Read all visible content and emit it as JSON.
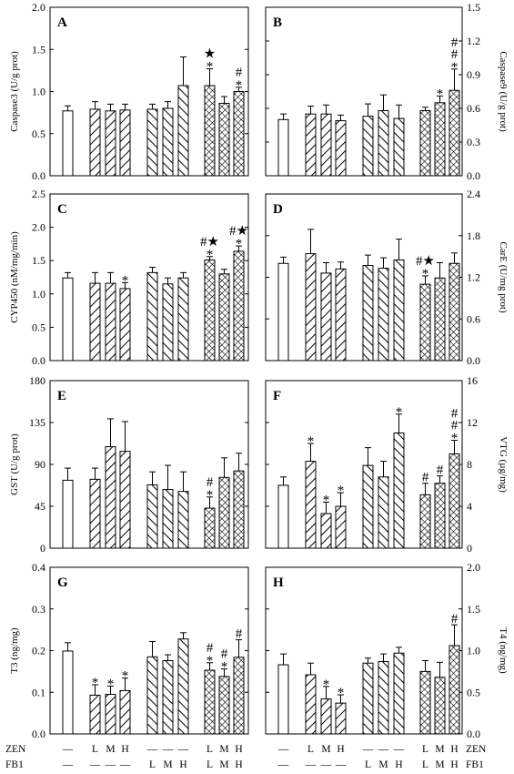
{
  "figure": {
    "x_groups": {
      "ZEN": {
        "label": "ZEN",
        "entries": [
          "—",
          "L",
          "M",
          "H",
          "—",
          "—",
          "—",
          "L",
          "M",
          "H"
        ]
      },
      "FB1": {
        "label": "FB1",
        "entries": [
          "—",
          "—",
          "—",
          "—",
          "L",
          "M",
          "H",
          "L",
          "M",
          "H"
        ]
      }
    }
  },
  "chart_data": [
    {
      "panel": "A",
      "type": "bar",
      "ylabel": "Caspase3 (U/g prot)",
      "axis_side": "left",
      "ylim": [
        0,
        2.0
      ],
      "yticks": [
        "0.0",
        "0.5",
        "1.0",
        "1.5",
        "2.0"
      ],
      "ytick_values": [
        0,
        0.5,
        1.0,
        1.5,
        2.0
      ],
      "values": [
        0.77,
        0.79,
        0.77,
        0.78,
        0.79,
        0.8,
        1.07,
        1.07,
        0.86,
        1.0
      ],
      "errors": [
        0.06,
        0.09,
        0.08,
        0.07,
        0.06,
        0.08,
        0.34,
        0.2,
        0.08,
        0.05
      ],
      "annotations": [
        "",
        "",
        "",
        "",
        "",
        "",
        "",
        "★\n*",
        "",
        "#\n*"
      ]
    },
    {
      "panel": "B",
      "type": "bar",
      "ylabel": "Caspase9 (U/g prot)",
      "axis_side": "right",
      "ylim": [
        0,
        1.5
      ],
      "yticks": [
        "0.0",
        "0.3",
        "0.6",
        "0.9",
        "1.2",
        "1.5"
      ],
      "ytick_values": [
        0,
        0.3,
        0.6,
        0.9,
        1.2,
        1.5
      ],
      "values": [
        0.5,
        0.55,
        0.55,
        0.49,
        0.53,
        0.58,
        0.51,
        0.58,
        0.65,
        0.76
      ],
      "errors": [
        0.05,
        0.07,
        0.08,
        0.05,
        0.11,
        0.14,
        0.12,
        0.03,
        0.06,
        0.19
      ],
      "annotations": [
        "",
        "",
        "",
        "",
        "",
        "",
        "",
        "",
        "*",
        "#\n#\n*"
      ]
    },
    {
      "panel": "C",
      "type": "bar",
      "ylabel": "CYP450 (nM/mg/min)",
      "axis_side": "left",
      "ylim": [
        0,
        2.5
      ],
      "yticks": [
        "0.0",
        "0.5",
        "1.0",
        "1.5",
        "2.0",
        "2.5"
      ],
      "ytick_values": [
        0,
        0.5,
        1.0,
        1.5,
        2.0,
        2.5
      ],
      "values": [
        1.24,
        1.16,
        1.16,
        1.08,
        1.32,
        1.15,
        1.24,
        1.51,
        1.3,
        1.64
      ],
      "errors": [
        0.08,
        0.16,
        0.16,
        0.09,
        0.08,
        0.09,
        0.08,
        0.05,
        0.07,
        0.08
      ],
      "annotations": [
        "",
        "",
        "",
        "*",
        "",
        "",
        "",
        "#★\n*",
        "",
        "#★\n*"
      ]
    },
    {
      "panel": "D",
      "type": "bar",
      "ylabel": "CarE (U/mg prot)",
      "axis_side": "right",
      "ylim": [
        0,
        2.4
      ],
      "yticks": [
        "0.0",
        "0.6",
        "1.2",
        "1.8",
        "2.4"
      ],
      "ytick_values": [
        0,
        0.6,
        1.2,
        1.8,
        2.4
      ],
      "values": [
        1.4,
        1.54,
        1.26,
        1.32,
        1.37,
        1.33,
        1.45,
        1.1,
        1.19,
        1.4
      ],
      "errors": [
        0.09,
        0.35,
        0.15,
        0.1,
        0.15,
        0.15,
        0.3,
        0.12,
        0.22,
        0.15
      ],
      "annotations": [
        "",
        "",
        "",
        "",
        "",
        "",
        "",
        "#★\n*",
        "",
        ""
      ]
    },
    {
      "panel": "E",
      "type": "bar",
      "ylabel": "GST (U/g prot)",
      "axis_side": "left",
      "ylim": [
        0,
        180
      ],
      "yticks": [
        "0",
        "45",
        "90",
        "135",
        "180"
      ],
      "ytick_values": [
        0,
        45,
        90,
        135,
        180
      ],
      "values": [
        73,
        74,
        109,
        104,
        68,
        63,
        61,
        43,
        76,
        83
      ],
      "errors": [
        13,
        12,
        30,
        32,
        14,
        26,
        21,
        12,
        21,
        19
      ],
      "annotations": [
        "",
        "",
        "",
        "",
        "",
        "",
        "",
        "#\n*",
        "",
        ""
      ]
    },
    {
      "panel": "F",
      "type": "bar",
      "ylabel": "VTG (µg/mg)",
      "axis_side": "right",
      "ylim": [
        0,
        16
      ],
      "yticks": [
        "0",
        "4",
        "8",
        "12",
        "16"
      ],
      "ytick_values": [
        0,
        4,
        8,
        12,
        16
      ],
      "values": [
        6.0,
        8.3,
        3.3,
        4.0,
        7.9,
        6.8,
        11.0,
        5.1,
        6.2,
        9.0
      ],
      "errors": [
        0.8,
        1.7,
        1.1,
        1.3,
        1.7,
        1.5,
        1.8,
        1.1,
        0.7,
        1.3
      ],
      "annotations": [
        "",
        "*",
        "*",
        "*",
        "",
        "",
        "*",
        "#",
        "#",
        "#\n#\n*"
      ]
    },
    {
      "panel": "G",
      "type": "bar",
      "ylabel": "T3 (ng/mg)",
      "axis_side": "left",
      "ylim": [
        0,
        0.4
      ],
      "yticks": [
        "0.0",
        "0.1",
        "0.2",
        "0.3",
        "0.4"
      ],
      "ytick_values": [
        0,
        0.1,
        0.2,
        0.3,
        0.4
      ],
      "values": [
        0.199,
        0.093,
        0.095,
        0.104,
        0.185,
        0.176,
        0.228,
        0.153,
        0.138,
        0.184
      ],
      "errors": [
        0.02,
        0.025,
        0.02,
        0.03,
        0.037,
        0.014,
        0.015,
        0.018,
        0.018,
        0.042
      ],
      "annotations": [
        "",
        "*",
        "*",
        "*",
        "",
        "",
        "",
        "#\n*",
        "#\n*",
        "#"
      ]
    },
    {
      "panel": "H",
      "type": "bar",
      "ylabel": "T4 (ng/mg)",
      "axis_side": "right",
      "ylim": [
        0,
        2.0
      ],
      "yticks": [
        "0.0",
        "0.5",
        "1.0",
        "1.5",
        "2.0"
      ],
      "ytick_values": [
        0,
        0.5,
        1.0,
        1.5,
        2.0
      ],
      "values": [
        0.83,
        0.71,
        0.42,
        0.37,
        0.85,
        0.87,
        0.97,
        0.75,
        0.68,
        1.06
      ],
      "errors": [
        0.13,
        0.14,
        0.15,
        0.1,
        0.06,
        0.09,
        0.07,
        0.13,
        0.18,
        0.25
      ],
      "annotations": [
        "",
        "",
        "*",
        "*",
        "",
        "",
        "",
        "",
        "",
        "#"
      ]
    }
  ]
}
